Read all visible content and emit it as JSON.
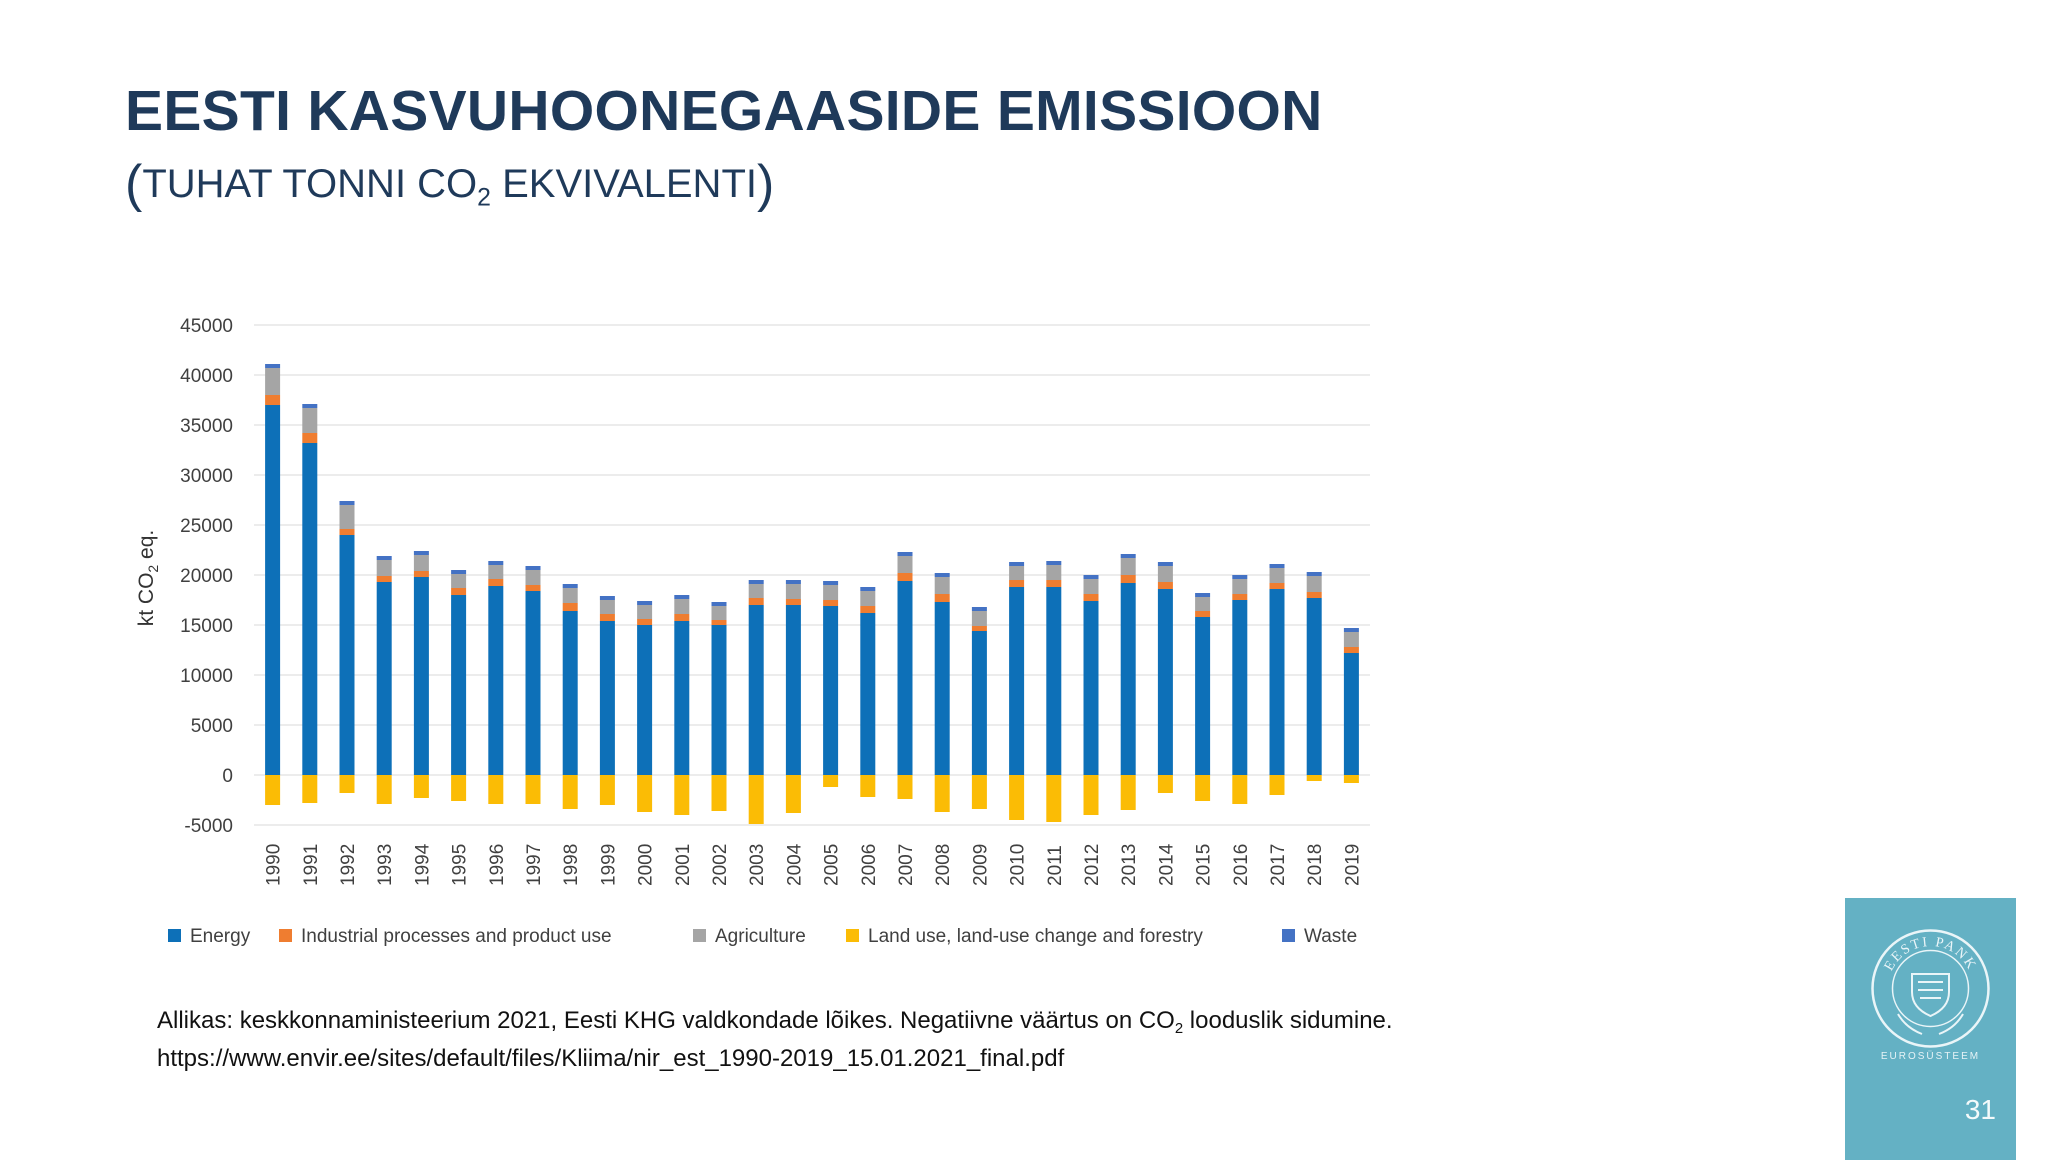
{
  "slide": {
    "title": "EESTI KASVUHOONEGAASIDE EMISSIOON",
    "subtitle_open": "(",
    "subtitle_text": "TUHAT TONNI CO",
    "subtitle_sub": "2",
    "subtitle_text2": " EKVIVALENTI",
    "subtitle_close": ")",
    "source_part1": "Allikas: keskkonnaministeerium 2021, Eesti KHG valdkondade lõikes. Negatiivne väärtus on CO",
    "source_sub": "2",
    "source_part2": " looduslik sidumine. https://www.envir.ee/sites/default/files/Kliima/nir_est_1990-2019_15.01.2021_final.pdf",
    "logo_text": "EESTI PANK",
    "logo_subtext": "EUROSÜSTEEM",
    "page_number": "31"
  },
  "chart_data": {
    "type": "bar",
    "stacked": true,
    "categories": [
      "1990",
      "1991",
      "1992",
      "1993",
      "1994",
      "1995",
      "1996",
      "1997",
      "1998",
      "1999",
      "2000",
      "2001",
      "2002",
      "2003",
      "2004",
      "2005",
      "2006",
      "2007",
      "2008",
      "2009",
      "2010",
      "2011",
      "2012",
      "2013",
      "2014",
      "2015",
      "2016",
      "2017",
      "2018",
      "2019"
    ],
    "ylabel": "kt CO2 eq.",
    "ylabel_main": "kt CO",
    "ylabel_sub": "2",
    "ylabel_end": " eq.",
    "ylim": [
      -5000,
      45000
    ],
    "yticks": [
      "45000",
      "40000",
      "35000",
      "30000",
      "25000",
      "20000",
      "15000",
      "10000",
      "5000",
      "0",
      "-5000"
    ],
    "grid": true,
    "legend_position": "bottom",
    "series": [
      {
        "name": "Energy",
        "color": "#0d70b8",
        "values": [
          37000,
          33200,
          24000,
          19300,
          19800,
          18000,
          18900,
          18400,
          16400,
          15400,
          15000,
          15400,
          15000,
          17000,
          17000,
          16900,
          16200,
          19400,
          17300,
          14400,
          18800,
          18800,
          17400,
          19200,
          18600,
          15800,
          17500,
          18600,
          17700,
          12200
        ]
      },
      {
        "name": "Industrial processes and product use",
        "color": "#ef7d30",
        "values": [
          1000,
          1000,
          600,
          600,
          600,
          700,
          700,
          600,
          800,
          700,
          600,
          700,
          500,
          700,
          600,
          600,
          700,
          800,
          800,
          500,
          700,
          700,
          700,
          800,
          700,
          600,
          600,
          600,
          600,
          600
        ]
      },
      {
        "name": "Agriculture",
        "color": "#a5a5a5",
        "values": [
          2700,
          2500,
          2400,
          1600,
          1600,
          1400,
          1400,
          1500,
          1500,
          1400,
          1400,
          1500,
          1400,
          1400,
          1500,
          1500,
          1500,
          1700,
          1700,
          1500,
          1400,
          1500,
          1500,
          1700,
          1600,
          1400,
          1500,
          1500,
          1600,
          1500
        ]
      },
      {
        "name": "Land use, land-use change and forestry",
        "color": "#fbbc05",
        "values": [
          -3000,
          -2800,
          -1800,
          -2900,
          -2300,
          -2600,
          -2900,
          -2900,
          -3400,
          -3000,
          -3700,
          -4000,
          -3600,
          -4900,
          -3800,
          -1200,
          -2200,
          -2400,
          -3700,
          -3400,
          -4500,
          -4700,
          -4000,
          -3500,
          -1800,
          -2600,
          -2900,
          -2000,
          -600,
          -800
        ]
      },
      {
        "name": "Waste",
        "color": "#4472c4",
        "values": [
          400,
          400,
          400,
          400,
          400,
          400,
          400,
          400,
          400,
          400,
          400,
          400,
          400,
          400,
          400,
          400,
          400,
          400,
          400,
          400,
          400,
          400,
          400,
          400,
          400,
          400,
          400,
          400,
          400,
          400
        ]
      }
    ]
  }
}
